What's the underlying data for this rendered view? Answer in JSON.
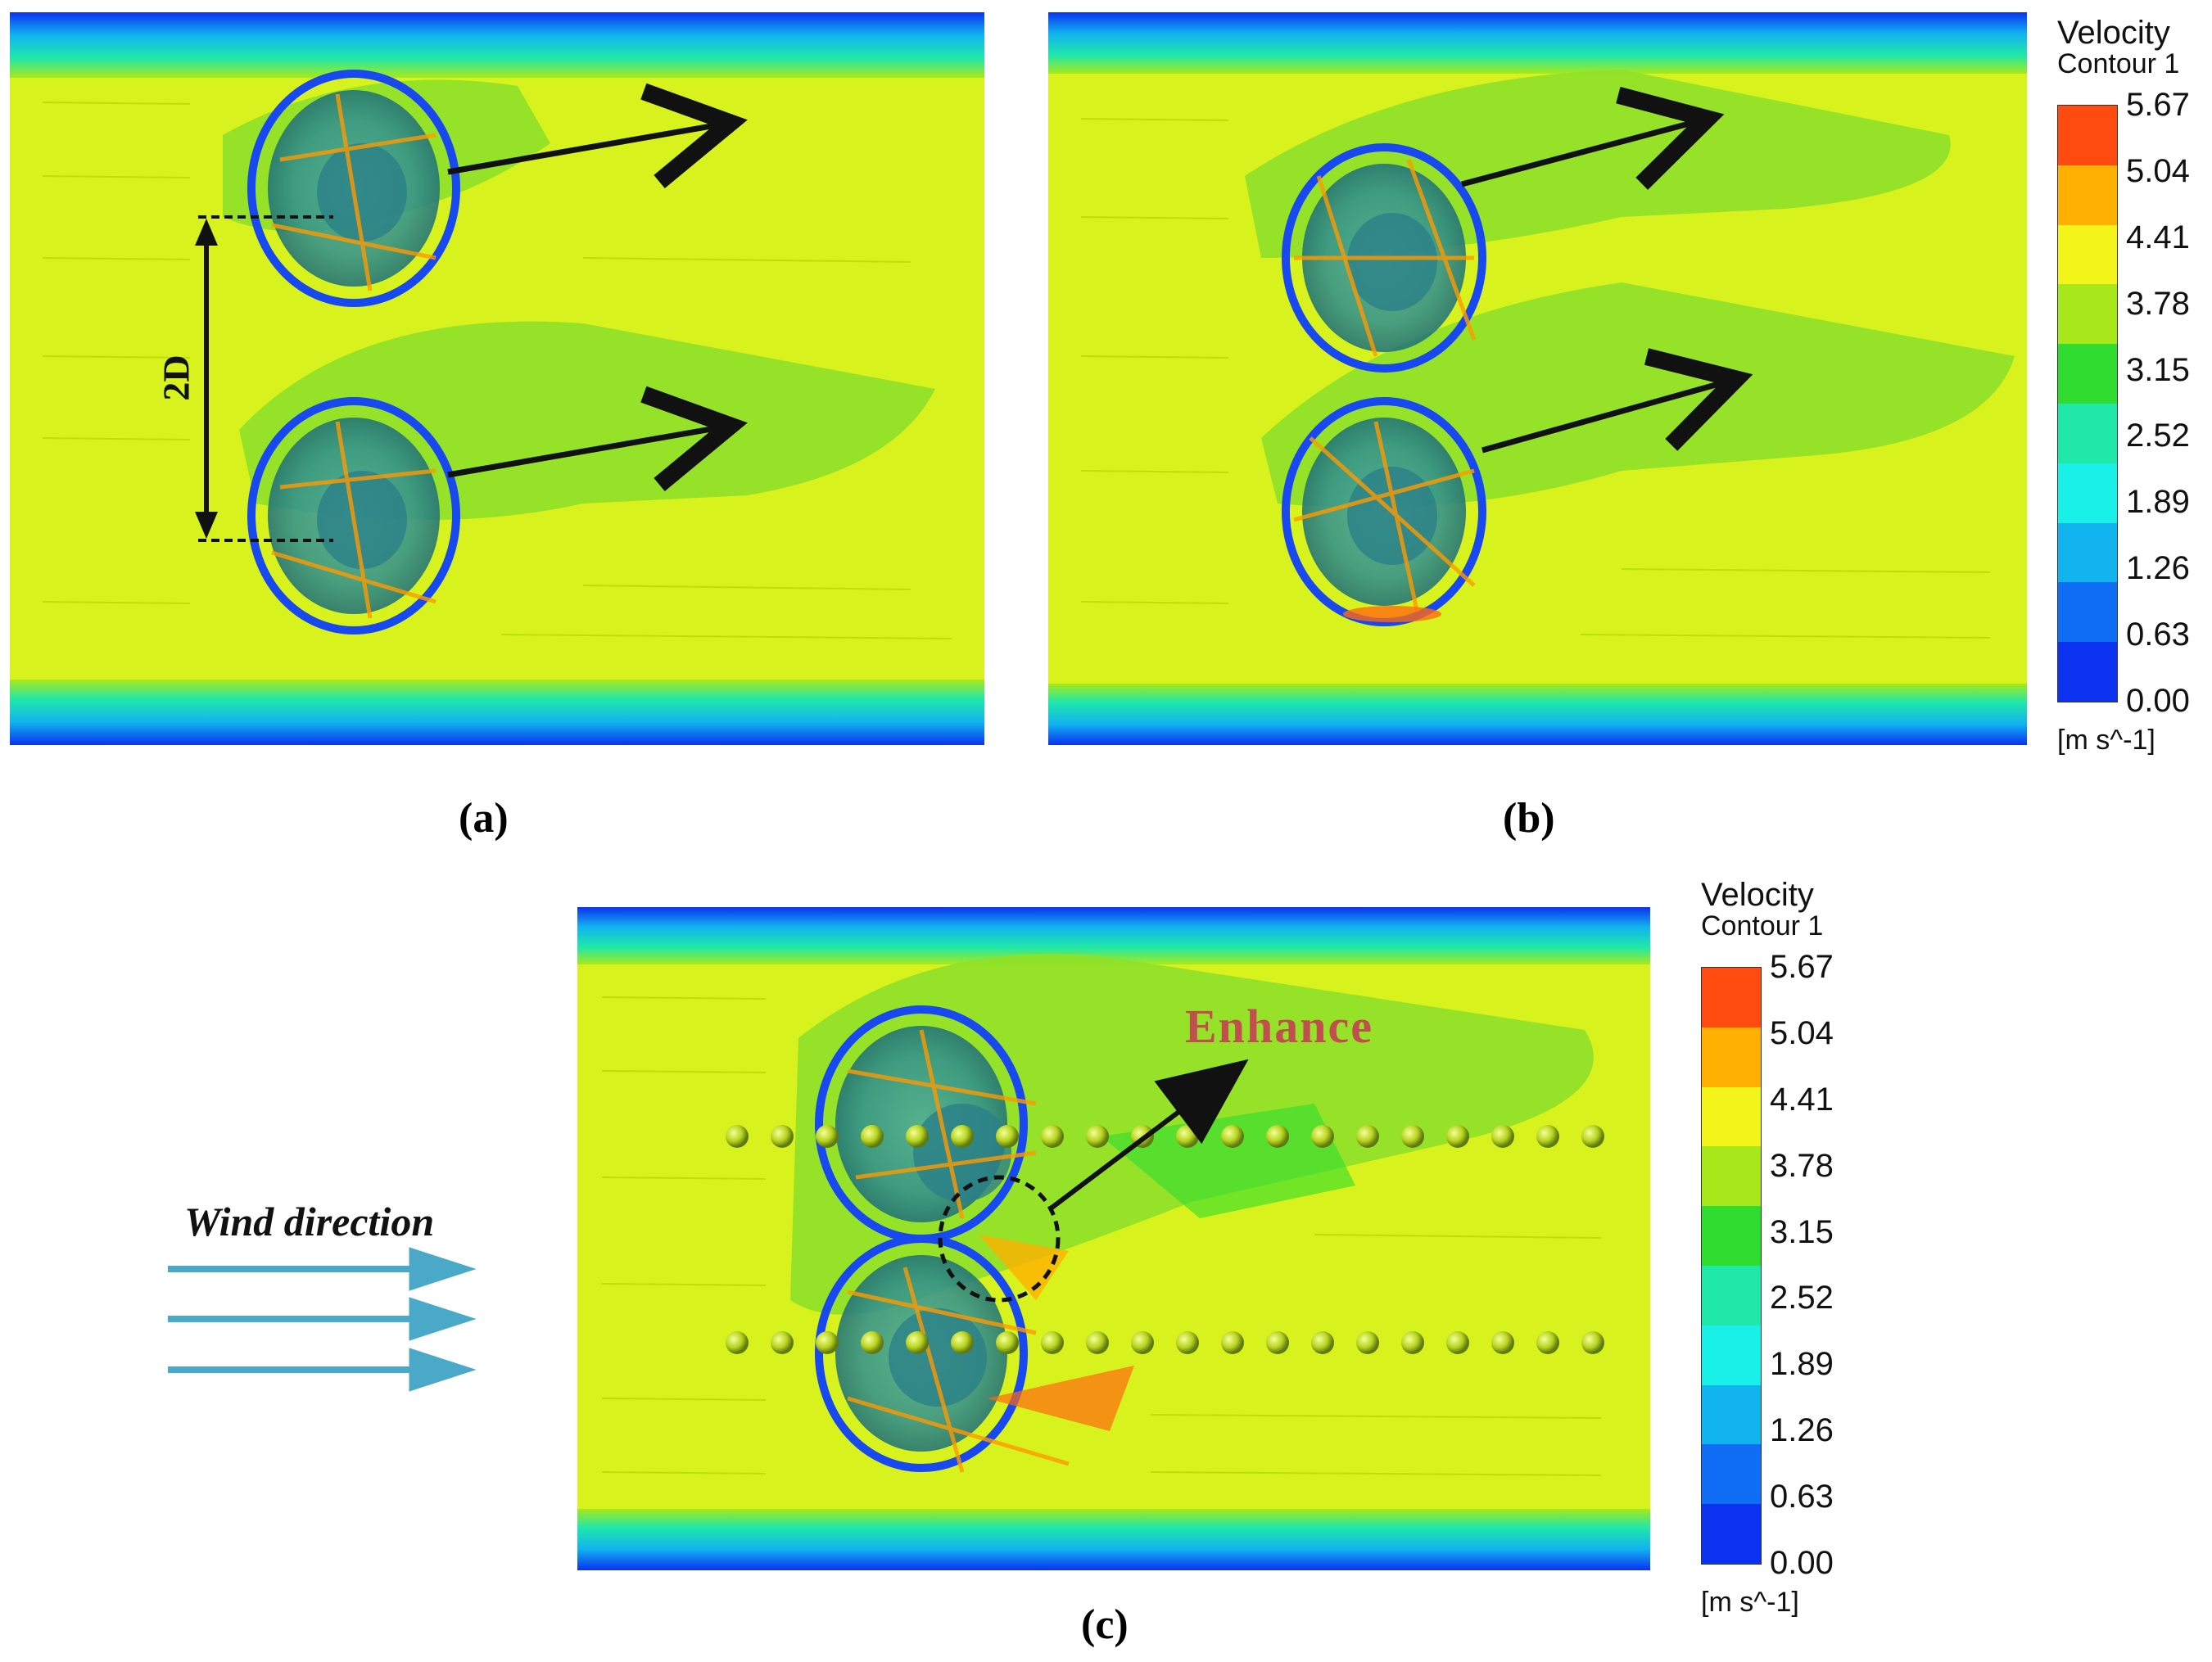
{
  "panels": {
    "a": {
      "caption": "(a)",
      "spacing_label": "2D"
    },
    "b": {
      "caption": "(b)"
    },
    "c": {
      "caption": "(c)",
      "annotation": "Enhance"
    }
  },
  "legend": {
    "title": "Velocity",
    "subtitle": "Contour 1",
    "unit": "[m s^-1]",
    "ticks": [
      "5.67",
      "5.04",
      "4.41",
      "3.78",
      "3.15",
      "2.52",
      "1.89",
      "1.26",
      "0.63",
      "0.00"
    ],
    "colors": [
      "#ff4a10",
      "#ffb000",
      "#f3f51a",
      "#a8e81a",
      "#2fdc2f",
      "#20e8a8",
      "#19f0e8",
      "#12b4f0",
      "#0f6ef5",
      "#0a32f0"
    ]
  },
  "wind": {
    "label": "Wind direction"
  },
  "colors": {
    "field": "#d7f21c",
    "wake": "#8fe02a",
    "rotor": "#3a9c9a",
    "edge_blue": "#1848f0",
    "wind_arrow": "#4aa8c8",
    "enhance_text": "#c0504d"
  }
}
